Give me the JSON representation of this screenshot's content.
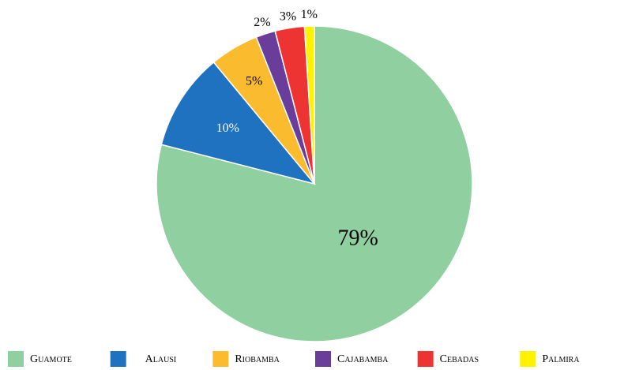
{
  "chart_data": {
    "type": "pie",
    "categories": [
      "Guamote",
      "Alausi",
      "Riobamba",
      "Cajabamba",
      "Cebadas",
      "Palmira"
    ],
    "values": [
      79,
      10,
      5,
      2,
      3,
      1
    ],
    "value_labels": [
      "79%",
      "10%",
      "5%",
      "2%",
      "3%",
      "1%"
    ],
    "colors": [
      "#8fcfa0",
      "#1f72c0",
      "#fbbb2e",
      "#6a3d9a",
      "#ee3333",
      "#fff200"
    ],
    "legend": "bottom"
  }
}
